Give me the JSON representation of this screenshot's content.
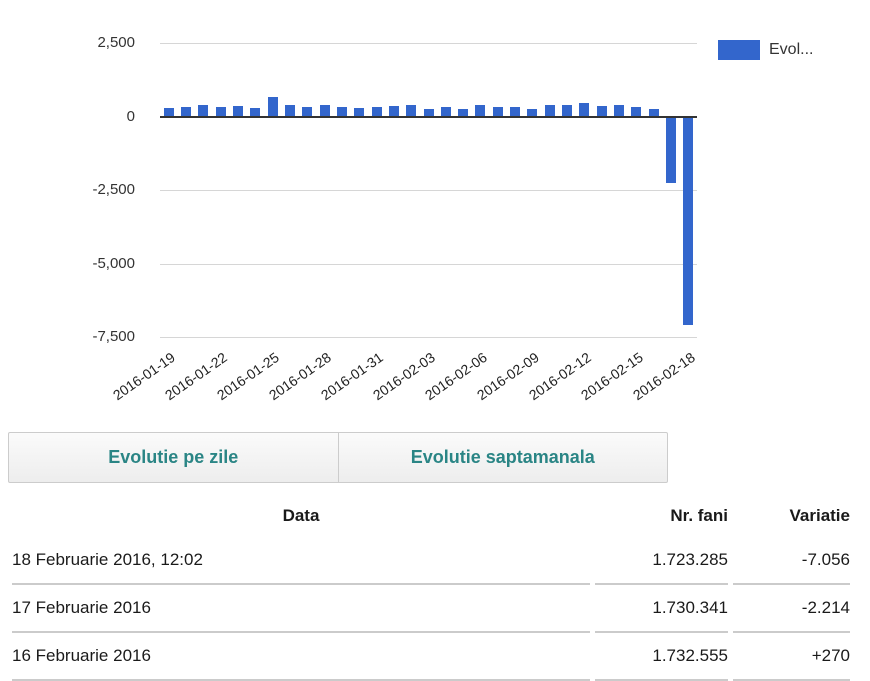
{
  "chart_data": {
    "type": "bar",
    "title": "",
    "legend_label": "Evol...",
    "legend_position": "right-top",
    "grid": true,
    "bar_color": "#3366cc",
    "ylim": [
      -7500,
      2500
    ],
    "yticks": [
      2500,
      0,
      -2500,
      -5000,
      -7500
    ],
    "ytick_labels": [
      "2,500",
      "0",
      "-2,500",
      "-5,000",
      "-7,500"
    ],
    "xtick_every": 3,
    "x": [
      "2016-01-19",
      "2016-01-20",
      "2016-01-21",
      "2016-01-22",
      "2016-01-23",
      "2016-01-24",
      "2016-01-25",
      "2016-01-26",
      "2016-01-27",
      "2016-01-28",
      "2016-01-29",
      "2016-01-30",
      "2016-01-31",
      "2016-02-01",
      "2016-02-02",
      "2016-02-03",
      "2016-02-04",
      "2016-02-05",
      "2016-02-06",
      "2016-02-07",
      "2016-02-08",
      "2016-02-09",
      "2016-02-10",
      "2016-02-11",
      "2016-02-12",
      "2016-02-13",
      "2016-02-14",
      "2016-02-15",
      "2016-02-16",
      "2016-02-17",
      "2016-02-18"
    ],
    "values": [
      300,
      340,
      390,
      310,
      360,
      280,
      650,
      380,
      330,
      380,
      340,
      300,
      310,
      350,
      390,
      260,
      310,
      250,
      390,
      330,
      340,
      250,
      380,
      380,
      460,
      370,
      380,
      340,
      270,
      -2214,
      -7056
    ]
  },
  "tabs": [
    {
      "label": "Evolutie pe zile"
    },
    {
      "label": "Evolutie saptamanala"
    }
  ],
  "table": {
    "columns": [
      "Data",
      "Nr. fani",
      "Variatie"
    ],
    "rows": [
      {
        "data": "18 Februarie 2016, 12:02",
        "nr_fani": "1.723.285",
        "variatie": "-7.056"
      },
      {
        "data": "17 Februarie 2016",
        "nr_fani": "1.730.341",
        "variatie": "-2.214"
      },
      {
        "data": "16 Februarie 2016",
        "nr_fani": "1.732.555",
        "variatie": "+270"
      }
    ]
  },
  "colors": {
    "bar": "#3366cc",
    "tab_text": "#2a8585",
    "gridline": "#d6d6d6",
    "axis_line": "#333333",
    "table_border": "#cbcbcb"
  }
}
